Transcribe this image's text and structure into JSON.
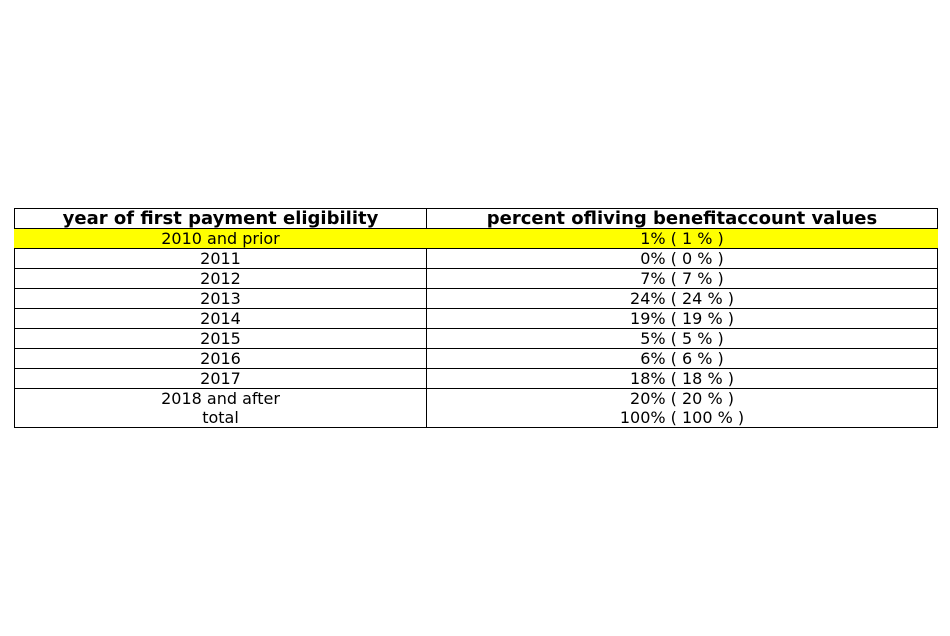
{
  "chart_data": {
    "type": "table",
    "columns": [
      "year of first payment eligibility",
      "percent ofliving benefitaccount values"
    ],
    "rows": [
      {
        "year": "2010 and prior",
        "value": "1% ( 1 % )",
        "percent": 1,
        "highlighted": true
      },
      {
        "year": "2011",
        "value": "0% ( 0 % )",
        "percent": 0,
        "highlighted": false
      },
      {
        "year": "2012",
        "value": "7% ( 7 % )",
        "percent": 7,
        "highlighted": false
      },
      {
        "year": "2013",
        "value": "24% ( 24 % )",
        "percent": 24,
        "highlighted": false
      },
      {
        "year": "2014",
        "value": "19% ( 19 % )",
        "percent": 19,
        "highlighted": false
      },
      {
        "year": "2015",
        "value": "5% ( 5 % )",
        "percent": 5,
        "highlighted": false
      },
      {
        "year": "2016",
        "value": "6% ( 6 % )",
        "percent": 6,
        "highlighted": false
      },
      {
        "year": "2017",
        "value": "18% ( 18 % )",
        "percent": 18,
        "highlighted": false
      },
      {
        "year": "2018 and after",
        "value": "20% ( 20 % )",
        "percent": 20,
        "highlighted": false
      },
      {
        "year": "total",
        "value": "100% ( 100 % )",
        "percent": 100,
        "highlighted": false
      }
    ],
    "highlight_color": "#ffff00",
    "border_color": "#000000"
  }
}
